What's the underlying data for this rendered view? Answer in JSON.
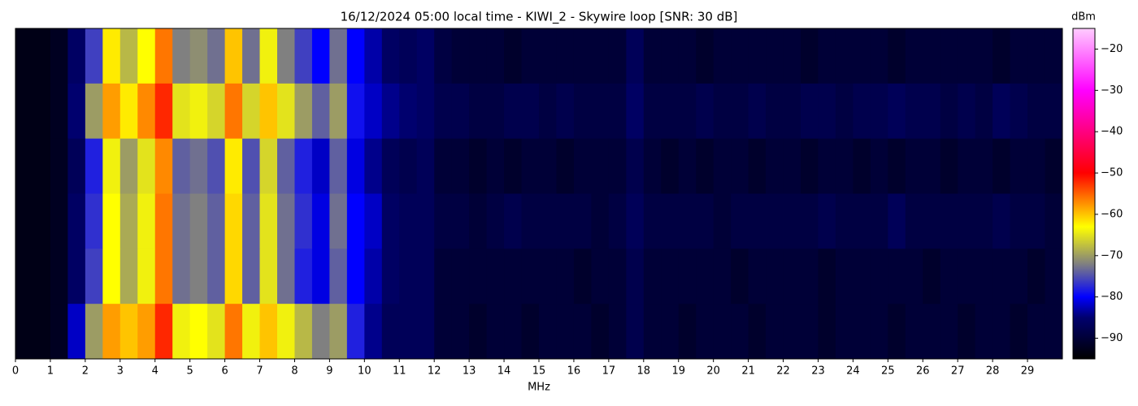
{
  "chart_data": {
    "type": "heatmap",
    "title": "16/12/2024 05:00 local time - KIWI_2 - Skywire loop [SNR: 30 dB]",
    "xlabel": "MHz",
    "colorbar_label": "dBm",
    "xlim": [
      0,
      30
    ],
    "xticks": [
      0,
      1,
      2,
      3,
      4,
      5,
      6,
      7,
      8,
      9,
      10,
      11,
      12,
      13,
      14,
      15,
      16,
      17,
      18,
      19,
      20,
      21,
      22,
      23,
      24,
      25,
      26,
      27,
      28,
      29
    ],
    "bins": [
      0,
      0.5,
      1,
      1.5,
      2,
      2.5,
      3,
      3.5,
      4,
      4.5,
      5,
      5.5,
      6,
      6.5,
      7,
      7.5,
      8,
      8.5,
      9,
      9.5,
      10,
      10.5,
      11,
      11.5,
      12,
      12.5,
      13,
      13.5,
      14,
      14.5,
      15,
      15.5,
      16,
      16.5,
      17,
      17.5,
      18,
      18.5,
      19,
      19.5,
      20,
      20.5,
      21,
      21.5,
      22,
      22.5,
      23,
      23.5,
      24,
      24.5,
      25,
      25.5,
      26,
      26.5,
      27,
      27.5,
      28,
      28.5,
      29,
      29.5,
      30
    ],
    "clim": [
      -95,
      -15
    ],
    "cticks": [
      {
        "value": -20,
        "label": "−20"
      },
      {
        "value": -30,
        "label": "−30"
      },
      {
        "value": -40,
        "label": "−40"
      },
      {
        "value": -50,
        "label": "−50"
      },
      {
        "value": -60,
        "label": "−60"
      },
      {
        "value": -70,
        "label": "−70"
      },
      {
        "value": -80,
        "label": "−80"
      },
      {
        "value": -90,
        "label": "−90"
      }
    ],
    "colormap": [
      {
        "value": -95,
        "color": "#000000"
      },
      {
        "value": -85,
        "color": "#00006e"
      },
      {
        "value": -80,
        "color": "#0000ff"
      },
      {
        "value": -72,
        "color": "#808080"
      },
      {
        "value": -63,
        "color": "#ffff00"
      },
      {
        "value": -50,
        "color": "#ff0000"
      },
      {
        "value": -30,
        "color": "#ff00ff"
      },
      {
        "value": -15,
        "color": "#ffccff"
      }
    ],
    "values": [
      [
        -93,
        -93,
        -92,
        -86,
        -76,
        -62,
        -68,
        -63,
        -56,
        -72,
        -71,
        -73,
        -60,
        -73,
        -64,
        -72,
        -76,
        -80,
        -73,
        -80,
        -83,
        -86,
        -87,
        -86,
        -89,
        -90,
        -90,
        -90,
        -91,
        -90,
        -90,
        -90,
        -90,
        -90,
        -90,
        -87,
        -90,
        -90,
        -90,
        -91,
        -90,
        -90,
        -90,
        -90,
        -90,
        -91,
        -90,
        -90,
        -90,
        -90,
        -91,
        -90,
        -90,
        -90,
        -90,
        -90,
        -91,
        -90,
        -90,
        -90
      ],
      [
        -93,
        -93,
        -92,
        -85,
        -70,
        -58,
        -62,
        -57,
        -52,
        -65,
        -64,
        -66,
        -56,
        -66,
        -60,
        -65,
        -70,
        -74,
        -70,
        -79,
        -82,
        -84,
        -85,
        -86,
        -88,
        -88,
        -89,
        -89,
        -88,
        -88,
        -89,
        -88,
        -89,
        -89,
        -89,
        -86,
        -89,
        -89,
        -89,
        -88,
        -89,
        -89,
        -88,
        -89,
        -89,
        -88,
        -88,
        -89,
        -88,
        -88,
        -87,
        -88,
        -88,
        -89,
        -88,
        -89,
        -87,
        -88,
        -89,
        -89
      ],
      [
        -93,
        -93,
        -92,
        -87,
        -78,
        -64,
        -70,
        -65,
        -57,
        -74,
        -73,
        -75,
        -62,
        -75,
        -66,
        -74,
        -78,
        -82,
        -74,
        -81,
        -84,
        -87,
        -88,
        -87,
        -90,
        -90,
        -91,
        -90,
        -91,
        -90,
        -90,
        -91,
        -90,
        -90,
        -90,
        -88,
        -90,
        -91,
        -90,
        -91,
        -90,
        -90,
        -91,
        -90,
        -90,
        -91,
        -90,
        -90,
        -91,
        -90,
        -91,
        -90,
        -90,
        -91,
        -90,
        -90,
        -91,
        -90,
        -90,
        -91
      ],
      [
        -93,
        -93,
        -92,
        -86,
        -77,
        -63,
        -69,
        -64,
        -56,
        -73,
        -72,
        -74,
        -61,
        -74,
        -65,
        -73,
        -77,
        -81,
        -73,
        -80,
        -82,
        -86,
        -87,
        -87,
        -89,
        -89,
        -90,
        -89,
        -88,
        -89,
        -89,
        -89,
        -89,
        -90,
        -89,
        -87,
        -89,
        -89,
        -89,
        -89,
        -90,
        -89,
        -89,
        -89,
        -89,
        -89,
        -88,
        -89,
        -89,
        -89,
        -87,
        -89,
        -89,
        -89,
        -89,
        -89,
        -88,
        -89,
        -89,
        -90
      ],
      [
        -93,
        -93,
        -92,
        -86,
        -76,
        -63,
        -69,
        -64,
        -56,
        -73,
        -72,
        -74,
        -61,
        -74,
        -65,
        -73,
        -78,
        -81,
        -74,
        -80,
        -83,
        -86,
        -87,
        -87,
        -90,
        -90,
        -90,
        -90,
        -90,
        -90,
        -90,
        -90,
        -91,
        -90,
        -90,
        -88,
        -90,
        -90,
        -90,
        -90,
        -90,
        -91,
        -90,
        -90,
        -90,
        -90,
        -91,
        -90,
        -90,
        -90,
        -90,
        -90,
        -91,
        -90,
        -90,
        -90,
        -90,
        -90,
        -91,
        -90
      ],
      [
        -93,
        -93,
        -92,
        -82,
        -70,
        -58,
        -60,
        -58,
        -52,
        -64,
        -63,
        -65,
        -56,
        -64,
        -60,
        -64,
        -68,
        -72,
        -70,
        -78,
        -84,
        -87,
        -87,
        -87,
        -90,
        -90,
        -91,
        -90,
        -90,
        -91,
        -90,
        -90,
        -90,
        -91,
        -90,
        -88,
        -90,
        -90,
        -91,
        -90,
        -90,
        -90,
        -91,
        -90,
        -90,
        -90,
        -91,
        -90,
        -90,
        -90,
        -91,
        -90,
        -90,
        -90,
        -91,
        -90,
        -90,
        -91,
        -90,
        -90
      ]
    ]
  }
}
